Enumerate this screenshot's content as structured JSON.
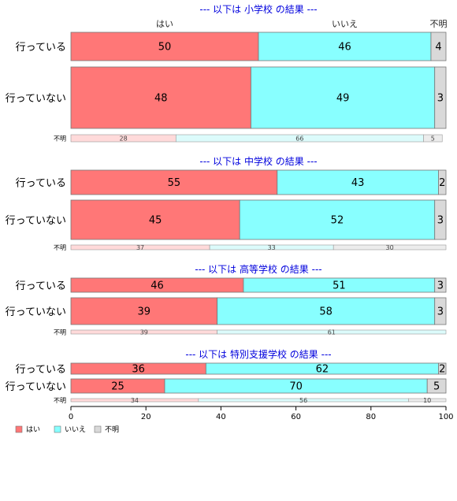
{
  "chart_data": {
    "type": "bar",
    "orientation": "horizontal",
    "stacked": "percent",
    "xlim": [
      0,
      100
    ],
    "x_ticks": [
      "0",
      "20",
      "40",
      "60",
      "80",
      "100"
    ],
    "legend": {
      "placement": "bottom-left",
      "entries": [
        {
          "label": "はい",
          "color": "#ff7777"
        },
        {
          "label": "いいえ",
          "color": "#88ffff"
        },
        {
          "label": "不明",
          "color": "#d9d9d9"
        }
      ]
    },
    "colors": {
      "hai": "#ff7777",
      "iie": "#88ffff",
      "fumei": "#d9d9d9",
      "hai_light": "#ffdada",
      "iie_light": "#dcfbfb",
      "fumei_light": "#ececec",
      "title": "#0000dd"
    },
    "column_headers": [
      "はい",
      "いいえ",
      "不明"
    ],
    "panels": [
      {
        "title": "--- 以下は 小学校 の結果 ---",
        "rows": [
          {
            "label": "行っている",
            "values": [
              50,
              46,
              4
            ]
          },
          {
            "label": "行っていない",
            "values": [
              48,
              49,
              3
            ]
          }
        ],
        "unknown_row": {
          "label": "不明",
          "values": [
            28,
            66,
            5
          ]
        }
      },
      {
        "title": "--- 以下は 中学校 の結果 ---",
        "rows": [
          {
            "label": "行っている",
            "values": [
              55,
              43,
              2
            ]
          },
          {
            "label": "行っていない",
            "values": [
              45,
              52,
              3
            ]
          }
        ],
        "unknown_row": {
          "label": "不明",
          "values": [
            37,
            33,
            30
          ]
        }
      },
      {
        "title": "--- 以下は 高等学校 の結果 ---",
        "rows": [
          {
            "label": "行っている",
            "values": [
              46,
              51,
              3
            ]
          },
          {
            "label": "行っていない",
            "values": [
              39,
              58,
              3
            ]
          }
        ],
        "unknown_row": {
          "label": "不明",
          "values": [
            39,
            61,
            0
          ]
        }
      },
      {
        "title": "--- 以下は 特別支援学校 の結果 ---",
        "rows": [
          {
            "label": "行っている",
            "values": [
              36,
              62,
              2
            ]
          },
          {
            "label": "行っていない",
            "values": [
              25,
              70,
              5
            ]
          }
        ],
        "unknown_row": {
          "label": "不明",
          "values": [
            34,
            56,
            10
          ]
        }
      }
    ]
  }
}
